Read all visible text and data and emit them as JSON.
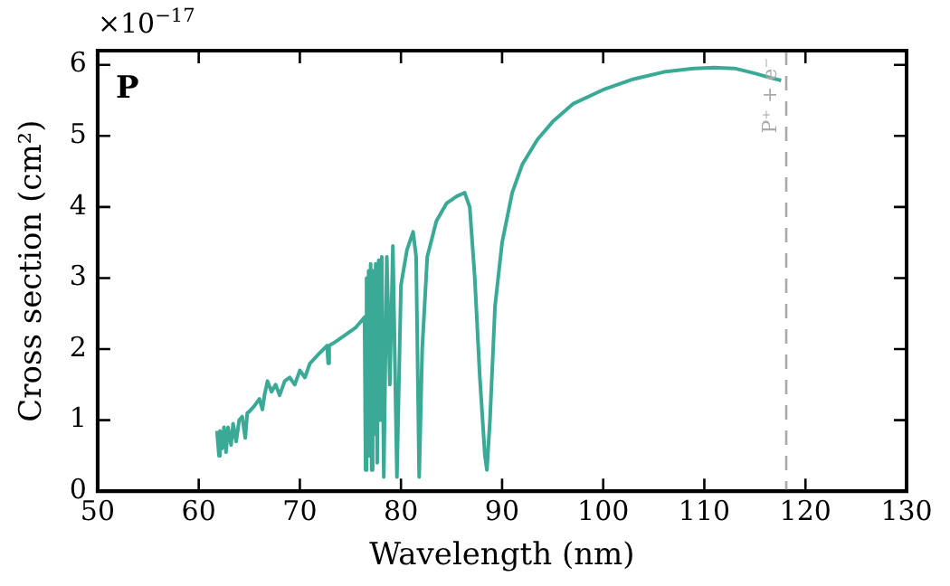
{
  "chart_data": {
    "type": "line",
    "xlabel": "Wavelength (nm)",
    "ylabel": "Cross section (cm²)",
    "annotations": [
      "×10$^{−17}$",
      "P"
    ],
    "xlim": [
      50,
      130
    ],
    "xticks": [
      50,
      60,
      70,
      80,
      90,
      100,
      110,
      120,
      130
    ],
    "ylim": [
      0,
      6.2
    ],
    "yticks": [
      0,
      1,
      2,
      3,
      4,
      5,
      6
    ],
    "marker": "none",
    "line_style": "solid",
    "legend": false,
    "grid": false,
    "ref_lines": [
      {
        "axis": "x",
        "value": 118.1,
        "label": "P⁺ + e⁻",
        "color": "#aaaaaa",
        "line_style": "dashed"
      }
    ],
    "series": [
      {
        "color": "#3aaa96",
        "x": [
          61.8,
          62.0,
          62.1,
          62.3,
          62.5,
          62.7,
          62.9,
          63.2,
          63.4,
          63.7,
          64.0,
          64.3,
          64.6,
          64.8,
          65.0,
          65.5,
          66.0,
          66.3,
          66.5,
          66.8,
          67.2,
          67.6,
          68.0,
          68.5,
          69.0,
          69.5,
          70.0,
          70.5,
          71.0,
          72.0,
          72.7,
          72.8,
          72.9,
          73.5,
          74.5,
          75.5,
          76.4,
          76.5,
          76.6,
          76.7,
          76.8,
          76.9,
          77.0,
          77.1,
          77.2,
          77.35,
          77.5,
          77.65,
          77.8,
          77.95,
          78.1,
          78.3,
          78.6,
          78.9,
          79.2,
          79.6,
          80.0,
          80.6,
          81.2,
          81.5,
          81.8,
          82.1,
          82.6,
          83.5,
          84.5,
          85.5,
          86.3,
          86.8,
          87.3,
          87.8,
          88.3,
          88.5,
          88.8,
          89.3,
          90,
          91,
          92,
          93.5,
          95,
          97,
          100,
          103,
          106,
          109,
          111,
          113,
          115,
          116.5,
          117.6
        ],
        "values": [
          0.85,
          0.5,
          0.85,
          0.6,
          0.9,
          0.55,
          0.9,
          0.65,
          0.95,
          0.7,
          1.0,
          1.05,
          0.75,
          1.1,
          1.12,
          1.2,
          1.3,
          1.15,
          1.35,
          1.55,
          1.4,
          1.5,
          1.35,
          1.55,
          1.6,
          1.5,
          1.7,
          1.6,
          1.8,
          1.95,
          2.05,
          1.8,
          2.05,
          2.1,
          2.2,
          2.3,
          2.45,
          0.3,
          3.0,
          0.5,
          3.1,
          0.6,
          3.2,
          0.3,
          3.1,
          0.8,
          3.2,
          0.4,
          3.25,
          1.0,
          3.3,
          0.2,
          3.3,
          1.5,
          3.45,
          0.2,
          2.9,
          3.4,
          3.65,
          3.3,
          0.2,
          2.0,
          3.3,
          3.8,
          4.05,
          4.15,
          4.2,
          4.0,
          3.0,
          1.6,
          0.5,
          0.3,
          1.0,
          2.6,
          3.5,
          4.2,
          4.6,
          4.95,
          5.2,
          5.45,
          5.65,
          5.8,
          5.9,
          5.95,
          5.96,
          5.95,
          5.88,
          5.82,
          5.78
        ]
      }
    ]
  }
}
